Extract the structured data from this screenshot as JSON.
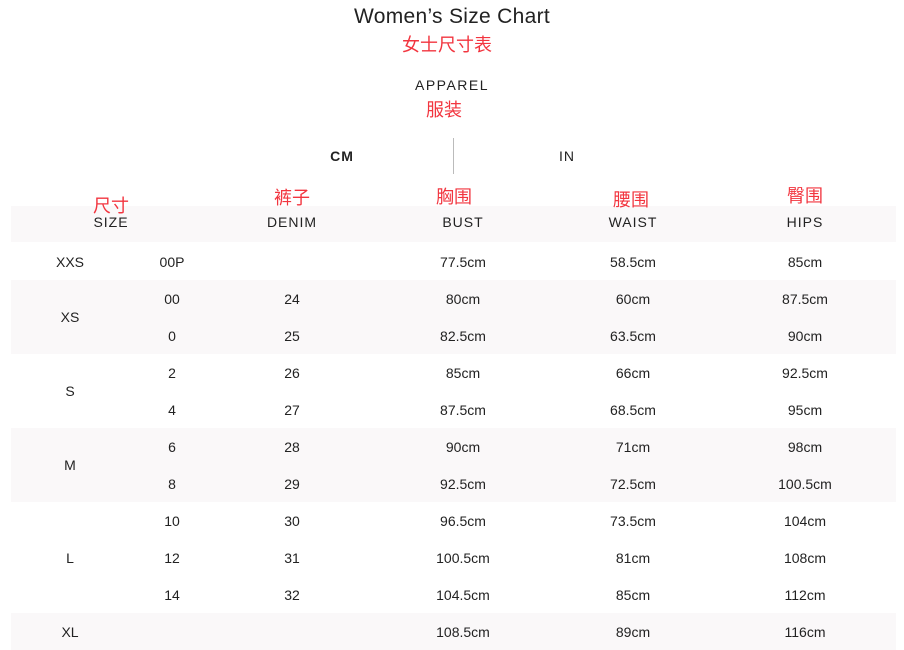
{
  "title": "Women’s Size Chart",
  "title_cn": "女士尺寸表",
  "category": "APPAREL",
  "category_cn": "服装",
  "unit_tabs": [
    {
      "label": "CM",
      "active": true
    },
    {
      "label": "IN",
      "active": false
    }
  ],
  "columns": [
    {
      "label": "SIZE",
      "label_cn": "尺寸"
    },
    {
      "label": "DENIM",
      "label_cn": "裤子"
    },
    {
      "label": "BUST",
      "label_cn": "胸围"
    },
    {
      "label": "WAIST",
      "label_cn": "腰围"
    },
    {
      "label": "HIPS",
      "label_cn": "臀围"
    }
  ],
  "groups": [
    {
      "size": "XXS",
      "rows": [
        [
          "00P",
          "",
          "77.5cm",
          "58.5cm",
          "85cm"
        ]
      ]
    },
    {
      "size": "XS",
      "rows": [
        [
          "00",
          "24",
          "80cm",
          "60cm",
          "87.5cm"
        ],
        [
          "0",
          "25",
          "82.5cm",
          "63.5cm",
          "90cm"
        ]
      ]
    },
    {
      "size": "S",
      "rows": [
        [
          "2",
          "26",
          "85cm",
          "66cm",
          "92.5cm"
        ],
        [
          "4",
          "27",
          "87.5cm",
          "68.5cm",
          "95cm"
        ]
      ]
    },
    {
      "size": "M",
      "rows": [
        [
          "6",
          "28",
          "90cm",
          "71cm",
          "98cm"
        ],
        [
          "8",
          "29",
          "92.5cm",
          "72.5cm",
          "100.5cm"
        ]
      ]
    },
    {
      "size": "L",
      "rows": [
        [
          "10",
          "30",
          "96.5cm",
          "73.5cm",
          "104cm"
        ],
        [
          "12",
          "31",
          "100.5cm",
          "81cm",
          "108cm"
        ],
        [
          "14",
          "32",
          "104.5cm",
          "85cm",
          "112cm"
        ]
      ]
    },
    {
      "size": "XL",
      "rows": [
        [
          "",
          "",
          "108.5cm",
          "89cm",
          "116cm"
        ]
      ]
    }
  ],
  "colors": {
    "annotation": "#f2353f",
    "band": "#faf8f9"
  }
}
